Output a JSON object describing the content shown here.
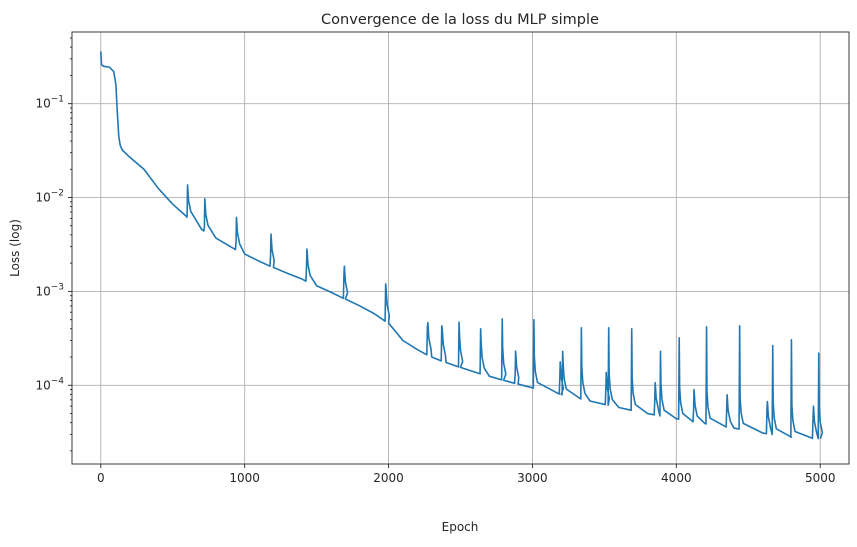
{
  "chart_data": {
    "type": "line",
    "title": "Convergence de la loss du MLP simple",
    "xlabel": "Epoch",
    "ylabel": "Loss (log)",
    "yscale": "log",
    "grid": true,
    "xlim": [
      -200,
      5200
    ],
    "ylim": [
      1.45e-05,
      0.58
    ],
    "x_ticks": [
      {
        "value": 0,
        "label": "0"
      },
      {
        "value": 1000,
        "label": "1000"
      },
      {
        "value": 2000,
        "label": "2000"
      },
      {
        "value": 3000,
        "label": "3000"
      },
      {
        "value": 4000,
        "label": "4000"
      },
      {
        "value": 5000,
        "label": "5000"
      }
    ],
    "y_ticks": [
      {
        "value": 0.0001,
        "base": "10",
        "exp": "−4"
      },
      {
        "value": 0.001,
        "base": "10",
        "exp": "−3"
      },
      {
        "value": 0.01,
        "base": "10",
        "exp": "−2"
      },
      {
        "value": 0.1,
        "base": "10",
        "exp": "−1"
      }
    ],
    "series": [
      {
        "color": "#1f77b4",
        "baseline": [
          [
            0,
            0.36
          ],
          [
            5,
            0.26
          ],
          [
            20,
            0.25
          ],
          [
            60,
            0.245
          ],
          [
            90,
            0.22
          ],
          [
            105,
            0.16
          ],
          [
            115,
            0.08
          ],
          [
            125,
            0.045
          ],
          [
            135,
            0.036
          ],
          [
            150,
            0.032
          ],
          [
            200,
            0.027
          ],
          [
            300,
            0.02
          ],
          [
            400,
            0.0125
          ],
          [
            500,
            0.0085
          ],
          [
            600,
            0.0062
          ],
          [
            700,
            0.0046
          ],
          [
            800,
            0.0037
          ],
          [
            900,
            0.003
          ],
          [
            1000,
            0.0025
          ],
          [
            1100,
            0.0021
          ],
          [
            1200,
            0.0018
          ],
          [
            1300,
            0.00155
          ],
          [
            1400,
            0.00135
          ],
          [
            1500,
            0.00115
          ],
          [
            1600,
            0.00098
          ],
          [
            1700,
            0.00083
          ],
          [
            1800,
            0.0007
          ],
          [
            1900,
            0.00058
          ],
          [
            2000,
            0.00046
          ],
          [
            2100,
            0.0003
          ],
          [
            2200,
            0.00024
          ],
          [
            2300,
            0.0002
          ],
          [
            2400,
            0.000175
          ],
          [
            2500,
            0.000155
          ],
          [
            2600,
            0.000138
          ],
          [
            2700,
            0.000125
          ],
          [
            2800,
            0.000113
          ],
          [
            2900,
            0.000103
          ],
          [
            3000,
            9.4e-05
          ],
          [
            3200,
            8e-05
          ],
          [
            3400,
            6.8e-05
          ],
          [
            3600,
            5.8e-05
          ],
          [
            3800,
            5e-05
          ],
          [
            4000,
            4.4e-05
          ],
          [
            4200,
            3.9e-05
          ],
          [
            4400,
            3.5e-05
          ],
          [
            4600,
            3.1e-05
          ],
          [
            4800,
            2.8e-05
          ],
          [
            5000,
            2.7e-05
          ]
        ],
        "spikes": [
          [
            600,
            0.0065
          ],
          [
            720,
            0.0048
          ],
          [
            940,
            0.0033
          ],
          [
            1180,
            0.0024
          ],
          [
            1430,
            0.0019
          ],
          [
            1690,
            0.0015
          ],
          [
            1980,
            0.0012
          ],
          [
            2270,
            0.00042
          ],
          [
            2370,
            0.00043
          ],
          [
            2490,
            0.00047
          ],
          [
            2640,
            0.0004
          ],
          [
            2790,
            0.00051
          ],
          [
            2880,
            0.000135
          ],
          [
            3010,
            0.0005
          ],
          [
            3190,
            0.000115
          ],
          [
            3210,
            0.00023
          ],
          [
            3340,
            0.00041
          ],
          [
            3510,
            9e-05
          ],
          [
            3530,
            0.00041
          ],
          [
            3690,
            0.0004
          ],
          [
            3850,
            6.8e-05
          ],
          [
            3890,
            0.00023
          ],
          [
            4020,
            0.00032
          ],
          [
            4120,
            5.5e-05
          ],
          [
            4210,
            0.00042
          ],
          [
            4350,
            5.5e-05
          ],
          [
            4440,
            0.00043
          ],
          [
            4630,
            5.6e-05
          ],
          [
            4670,
            0.000265
          ],
          [
            4800,
            0.000305
          ],
          [
            4950,
            4.5e-05
          ],
          [
            4990,
            0.00022
          ]
        ]
      }
    ]
  }
}
